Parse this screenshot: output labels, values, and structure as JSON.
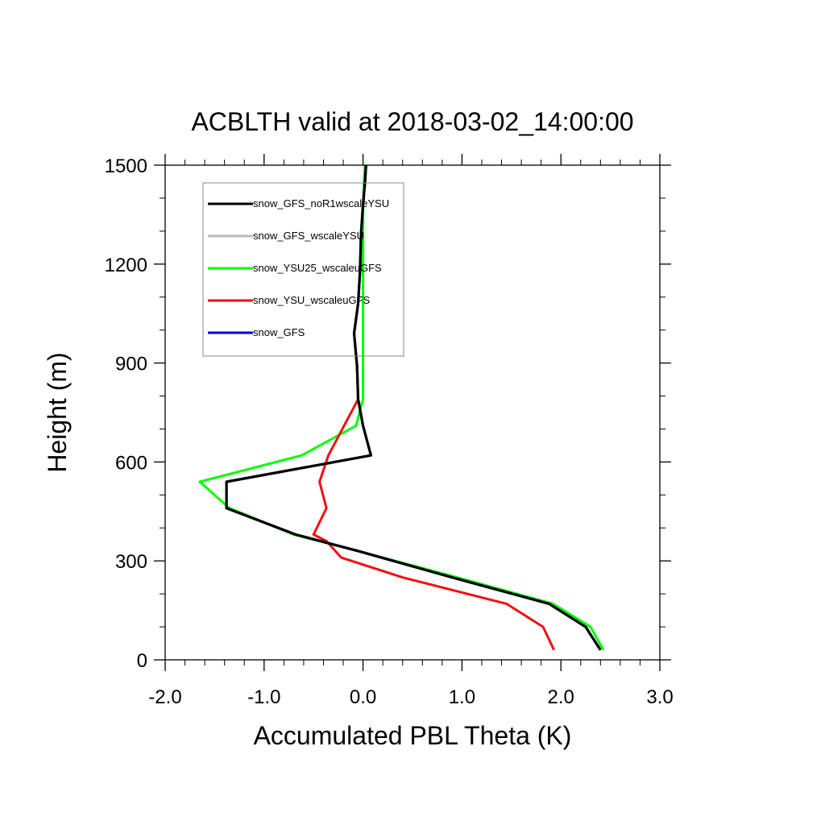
{
  "chart_data": {
    "type": "line",
    "title": "ACBLTH valid at 2018-03-02_14:00:00",
    "xlabel": "Accumulated PBL Theta (K)",
    "ylabel": "Height (m)",
    "xlim": [
      -2.0,
      3.0
    ],
    "ylim": [
      0,
      1500
    ],
    "xticks": [
      "-2.0",
      "-1.0",
      "0.0",
      "1.0",
      "2.0",
      "3.0"
    ],
    "yticks": [
      "0",
      "300",
      "600",
      "900",
      "1200",
      "1500"
    ],
    "xtick_values": [
      -2,
      -1,
      0,
      1,
      2,
      3
    ],
    "ytick_values": [
      0,
      300,
      600,
      900,
      1200,
      1500
    ],
    "legend_placement": "top-left",
    "series": [
      {
        "name": "snow_GFS_noR1wscaleYSU",
        "color": "#000000",
        "x": [
          2.4,
          2.25,
          1.88,
          0.9,
          -0.05,
          -0.68,
          -1.38,
          -1.38,
          0.08,
          0.0,
          -0.05,
          -0.06,
          -0.09,
          -0.05,
          -0.03,
          -0.02,
          0.0,
          0.02,
          0.03
        ],
        "y": [
          30,
          100,
          170,
          250,
          330,
          380,
          460,
          540,
          620,
          710,
          790,
          890,
          990,
          1080,
          1180,
          1290,
          1380,
          1450,
          1500
        ]
      },
      {
        "name": "snow_GFS_wscaleYSU",
        "color": "#bbbbbb",
        "x": [
          2.4,
          2.25,
          1.88,
          0.9,
          -0.05,
          -0.68,
          -1.38,
          -1.38,
          0.08,
          0.0,
          -0.05,
          -0.06,
          -0.09,
          -0.05,
          -0.03,
          -0.02,
          0.0,
          0.02,
          0.03
        ],
        "y": [
          30,
          100,
          170,
          250,
          330,
          380,
          460,
          540,
          620,
          710,
          790,
          890,
          990,
          1080,
          1180,
          1290,
          1380,
          1450,
          1500
        ]
      },
      {
        "name": "snow_YSU25_wscaleuGFS",
        "color": "#00ff00",
        "x": [
          2.43,
          2.3,
          1.92,
          0.95,
          -0.05,
          -0.7,
          -1.35,
          -1.65,
          -0.62,
          -0.07,
          0.0,
          0.0,
          0.0,
          0.0,
          0.0,
          0.0,
          0.0,
          0.01,
          0.02
        ],
        "y": [
          30,
          100,
          170,
          250,
          330,
          380,
          460,
          540,
          620,
          710,
          790,
          890,
          990,
          1080,
          1180,
          1290,
          1380,
          1450,
          1500
        ]
      },
      {
        "name": "snow_YSU_wscaleuGFS",
        "color": "#ee1111",
        "x": [
          1.93,
          1.82,
          1.45,
          0.4,
          -0.22,
          -0.37,
          -0.5,
          -0.37,
          -0.44,
          -0.35,
          -0.05
        ],
        "y": [
          30,
          100,
          170,
          250,
          310,
          360,
          380,
          460,
          540,
          620,
          790
        ]
      },
      {
        "name": "snow_GFS",
        "color": "#0000cc",
        "x": [
          2.4,
          2.25,
          1.88,
          0.9,
          -0.05,
          -0.68,
          -1.38,
          -1.38,
          0.08,
          0.0,
          -0.05,
          -0.06,
          -0.09,
          -0.05,
          -0.03,
          -0.02,
          0.0,
          0.02,
          0.03
        ],
        "y": [
          30,
          100,
          170,
          250,
          330,
          380,
          460,
          540,
          620,
          710,
          790,
          890,
          990,
          1080,
          1180,
          1290,
          1380,
          1450,
          1500
        ]
      }
    ]
  }
}
